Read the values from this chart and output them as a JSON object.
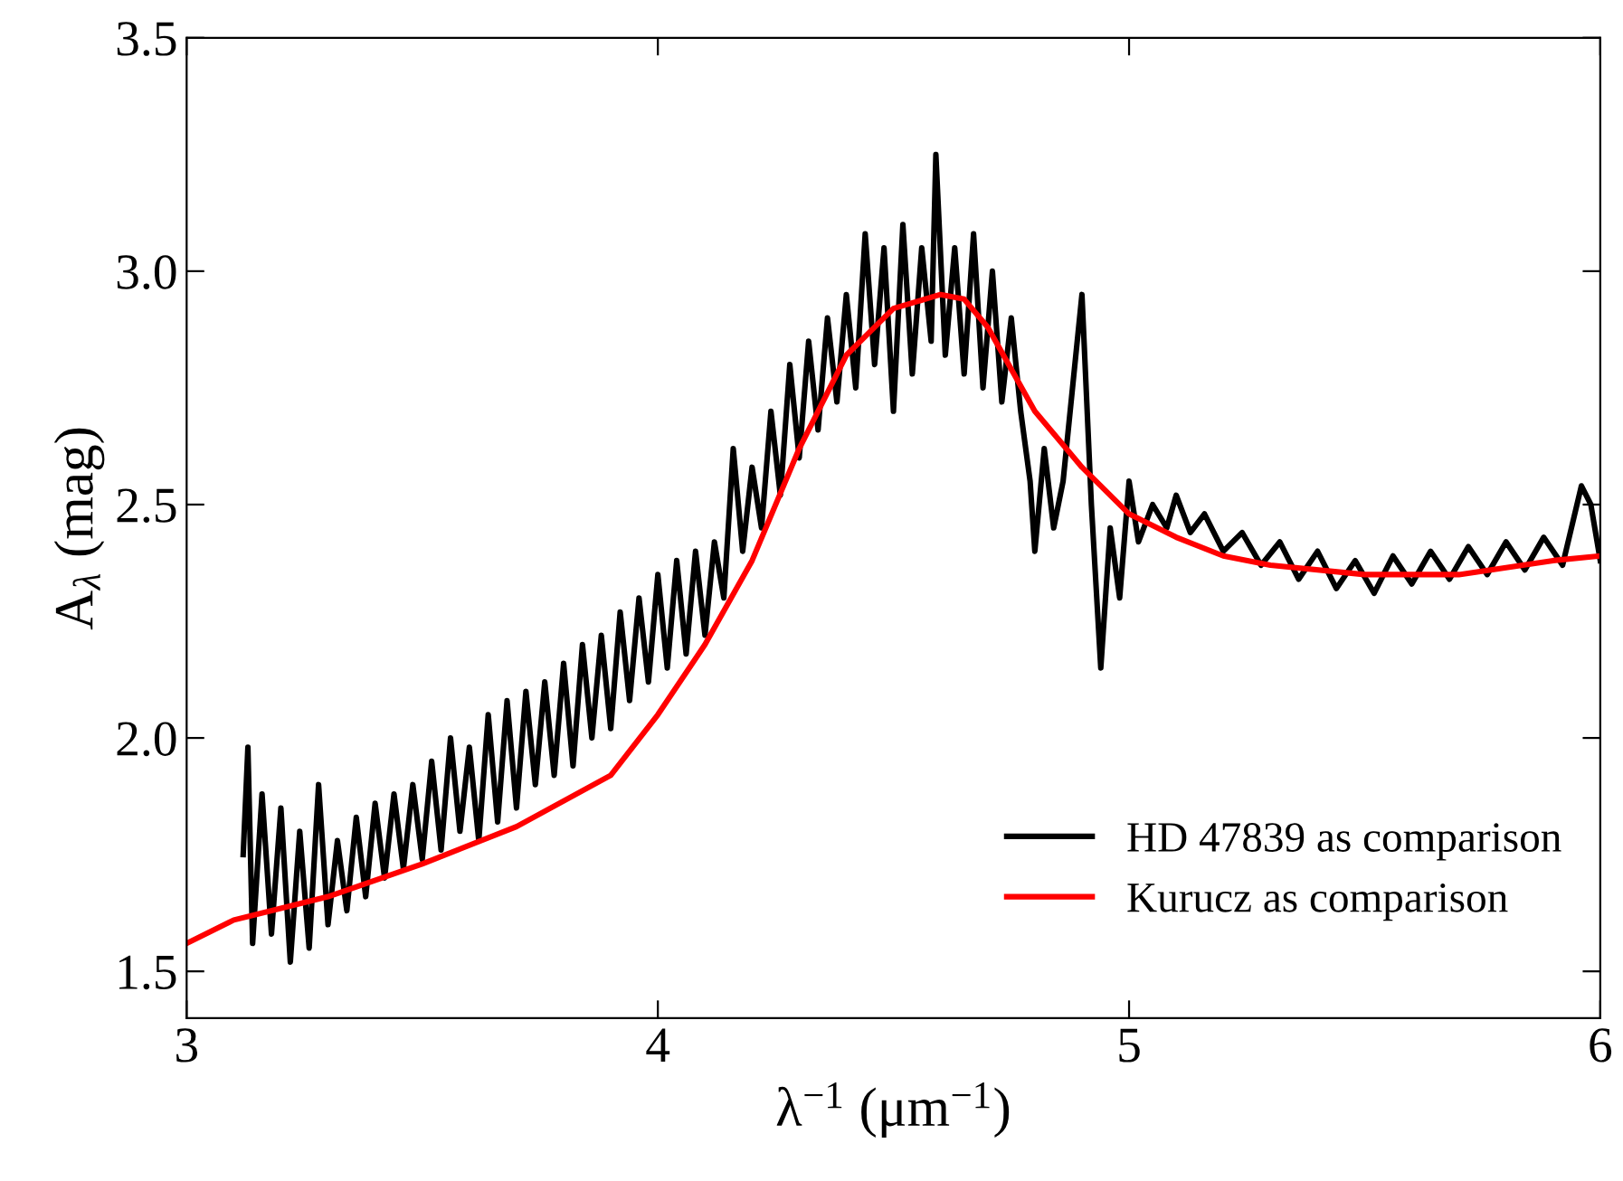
{
  "chart_data": {
    "type": "line",
    "xlabel": "λ$^{−1}$ (μm$^{−1}$)",
    "ylabel": "A$_{λ}$ (mag)",
    "xlim": [
      3,
      6
    ],
    "ylim": [
      1.4,
      3.5
    ],
    "xticks": [
      3,
      4,
      5,
      6
    ],
    "yticks": [
      1.5,
      {
        "value": 2,
        "label": "2.0"
      },
      2.5,
      {
        "value": 3,
        "label": "3.0"
      },
      3.5
    ],
    "grid": false,
    "legend": "bottom right",
    "marker": "none",
    "line_style": "solid",
    "series": [
      {
        "name": "HD 47839 as comparison",
        "color": "#000000",
        "x": [
          3.12,
          3.13,
          3.14,
          3.16,
          3.18,
          3.2,
          3.22,
          3.24,
          3.26,
          3.28,
          3.3,
          3.32,
          3.34,
          3.36,
          3.38,
          3.4,
          3.42,
          3.44,
          3.46,
          3.48,
          3.5,
          3.52,
          3.54,
          3.56,
          3.58,
          3.6,
          3.62,
          3.64,
          3.66,
          3.68,
          3.7,
          3.72,
          3.74,
          3.76,
          3.78,
          3.8,
          3.82,
          3.84,
          3.86,
          3.88,
          3.9,
          3.92,
          3.94,
          3.96,
          3.98,
          4.0,
          4.02,
          4.04,
          4.06,
          4.08,
          4.1,
          4.12,
          4.14,
          4.16,
          4.18,
          4.2,
          4.22,
          4.24,
          4.26,
          4.28,
          4.3,
          4.32,
          4.34,
          4.36,
          4.38,
          4.4,
          4.42,
          4.44,
          4.46,
          4.48,
          4.5,
          4.52,
          4.54,
          4.56,
          4.58,
          4.59,
          4.61,
          4.63,
          4.65,
          4.67,
          4.69,
          4.71,
          4.73,
          4.75,
          4.77,
          4.79,
          4.8,
          4.82,
          4.84,
          4.86,
          4.88,
          4.9,
          4.92,
          4.94,
          4.96,
          4.98,
          5.0,
          5.02,
          5.05,
          5.08,
          5.1,
          5.13,
          5.16,
          5.2,
          5.24,
          5.28,
          5.32,
          5.36,
          5.4,
          5.44,
          5.48,
          5.52,
          5.56,
          5.6,
          5.64,
          5.68,
          5.72,
          5.76,
          5.8,
          5.84,
          5.88,
          5.92,
          5.96,
          5.98,
          6.0
        ],
        "values": [
          1.75,
          1.98,
          1.56,
          1.88,
          1.58,
          1.85,
          1.52,
          1.8,
          1.55,
          1.9,
          1.6,
          1.78,
          1.63,
          1.83,
          1.66,
          1.86,
          1.7,
          1.88,
          1.72,
          1.9,
          1.74,
          1.95,
          1.76,
          2.0,
          1.8,
          1.98,
          1.78,
          2.05,
          1.82,
          2.08,
          1.85,
          2.1,
          1.9,
          2.12,
          1.92,
          2.16,
          1.94,
          2.2,
          2.0,
          2.22,
          2.02,
          2.27,
          2.08,
          2.3,
          2.12,
          2.35,
          2.15,
          2.38,
          2.18,
          2.4,
          2.22,
          2.42,
          2.3,
          2.62,
          2.4,
          2.58,
          2.45,
          2.7,
          2.52,
          2.8,
          2.6,
          2.85,
          2.66,
          2.9,
          2.72,
          2.95,
          2.75,
          3.08,
          2.8,
          3.05,
          2.7,
          3.1,
          2.78,
          3.05,
          2.85,
          3.25,
          2.82,
          3.05,
          2.78,
          3.08,
          2.75,
          3.0,
          2.72,
          2.9,
          2.7,
          2.55,
          2.4,
          2.62,
          2.45,
          2.55,
          2.75,
          2.95,
          2.5,
          2.15,
          2.45,
          2.3,
          2.55,
          2.42,
          2.5,
          2.45,
          2.52,
          2.44,
          2.48,
          2.4,
          2.44,
          2.37,
          2.42,
          2.34,
          2.4,
          2.32,
          2.38,
          2.31,
          2.39,
          2.33,
          2.4,
          2.34,
          2.41,
          2.35,
          2.42,
          2.36,
          2.43,
          2.37,
          2.54,
          2.5,
          2.38
        ]
      },
      {
        "name": "Kurucz as comparison",
        "color": "#ff0000",
        "x": [
          3.0,
          3.1,
          3.3,
          3.5,
          3.7,
          3.9,
          4.0,
          4.1,
          4.2,
          4.3,
          4.4,
          4.5,
          4.6,
          4.65,
          4.7,
          4.8,
          4.9,
          5.0,
          5.1,
          5.2,
          5.3,
          5.5,
          5.7,
          5.9,
          6.0
        ],
        "values": [
          1.56,
          1.61,
          1.66,
          1.73,
          1.81,
          1.92,
          2.05,
          2.2,
          2.38,
          2.62,
          2.82,
          2.92,
          2.95,
          2.94,
          2.88,
          2.7,
          2.58,
          2.48,
          2.43,
          2.39,
          2.37,
          2.35,
          2.35,
          2.38,
          2.39
        ]
      }
    ]
  }
}
